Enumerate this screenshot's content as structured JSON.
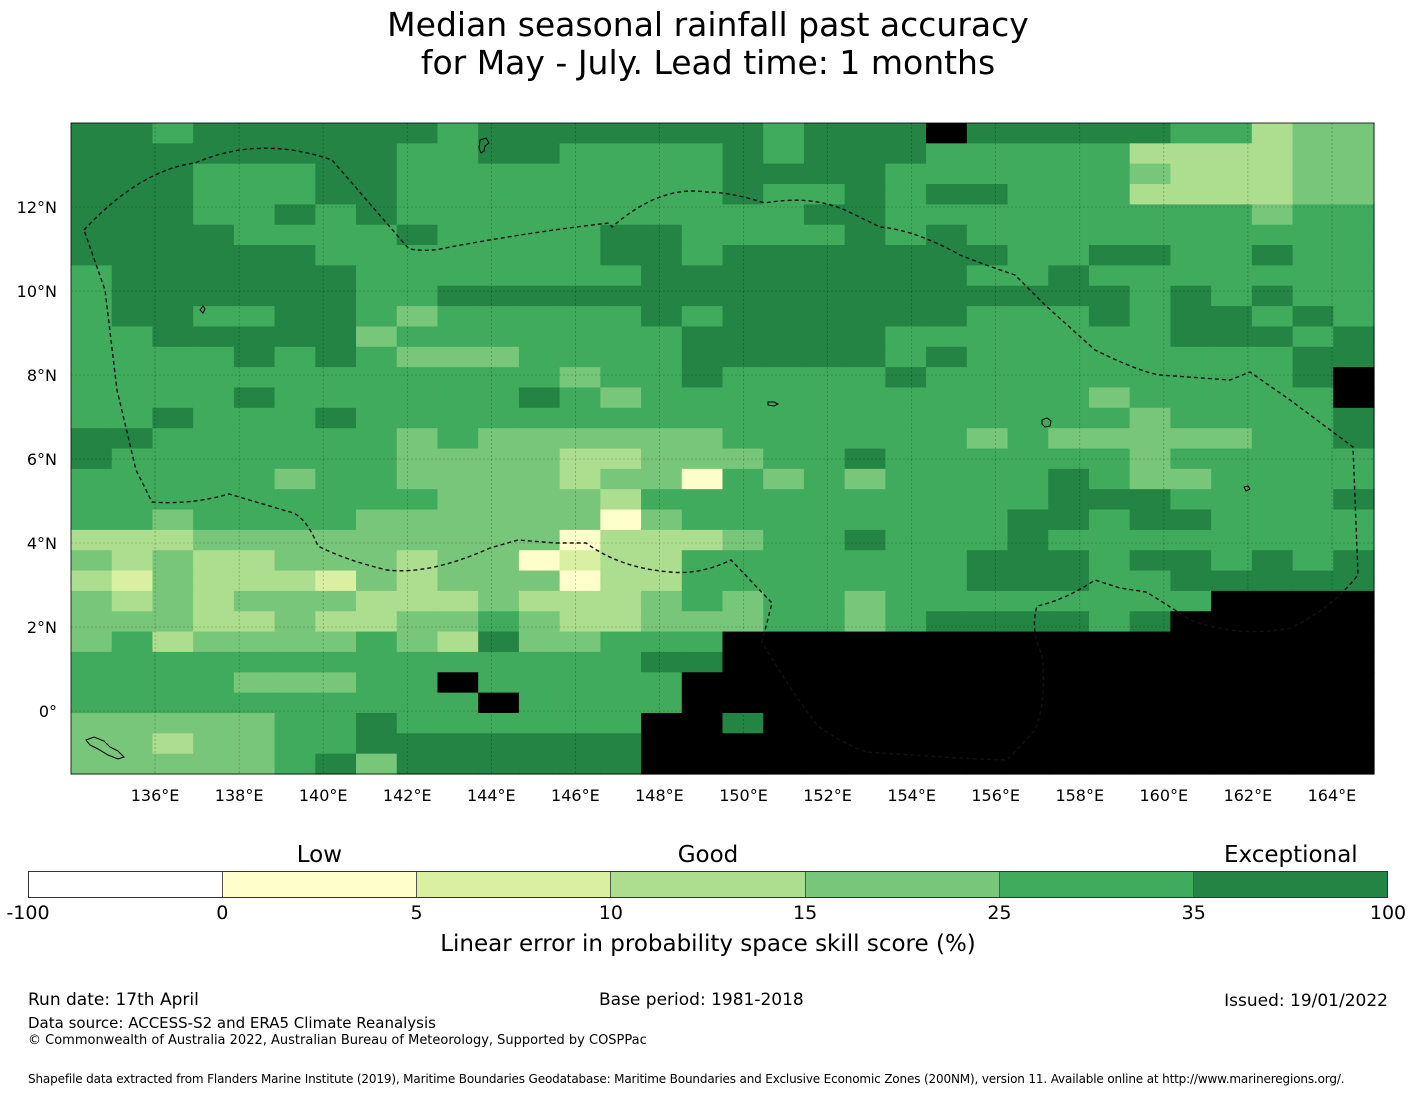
{
  "title": {
    "line1": "Median seasonal rainfall past accuracy",
    "line2": "for May - July. Lead time: 1 months"
  },
  "map": {
    "lon_labels": [
      "136°E",
      "138°E",
      "140°E",
      "142°E",
      "144°E",
      "146°E",
      "148°E",
      "150°E",
      "152°E",
      "154°E",
      "156°E",
      "158°E",
      "160°E",
      "162°E",
      "164°E"
    ],
    "lat_labels": [
      "12°N",
      "10°N",
      "8°N",
      "6°N",
      "4°N",
      "2°N",
      "0°"
    ],
    "extent": {
      "lon": [
        134.0,
        165.0
      ],
      "lat": [
        -1.5,
        14.0
      ]
    },
    "grid_resolution_deg": [
      0.833,
      0.556
    ],
    "gridlines": true,
    "boundary_style": "dashed",
    "legend_levels": [
      -100,
      0,
      5,
      10,
      15,
      25,
      35,
      100
    ],
    "skill_grid": [
      "66566666656666666566676666655344",
      "66666666556655556566655555333344",
      "66655566555555556666555555433344",
      "66655566555555556556566555333344",
      "66655656555555555566555555555455",
      "66665555655556655556565555555555",
      "66666655555556656666666556655655",
      "56666665555555666666665565555555",
      "56666665566666666666666666565655",
      "56655665455555656666665556566565",
      "55666664555555566666555555566656",
      "55556565444555566666565555555566",
      "55555555555545565555655555555567",
      "55556555555654555555555554555557",
      "55655565555555555555555555455556",
      "66555555454444445555554544444556",
      "65555555444433444556555555455555",
      "55555455444434415454555565445555",
      "55555555544443555555555566655556",
      "55455554444441455555555665665555",
      "33344444444413334556555655555555",
      "43433444344123355555556665665656",
      "32433324344413355555556665566666",
      "43434443334333454554555555557777",
      "44433433445433444554566665677777",
      "45344445436445557777777777777777",
      "55555555555555667777777777777777",
      "55554445575555577777777777777777",
      "55555555557555577777777777777777",
      "44444556555555776777777777777777",
      "44344556666666777777777777777777",
      "44444564666666777777777777777777"
    ]
  },
  "colorbar": {
    "ticks": [
      "-100",
      "0",
      "5",
      "10",
      "15",
      "25",
      "35",
      "100"
    ],
    "words": [
      "Low",
      "Good",
      "Exceptional"
    ],
    "colors": [
      "#ffffff",
      "#ffffcc",
      "#d9f0a3",
      "#addd8e",
      "#78c679",
      "#41ab5d",
      "#238443"
    ],
    "label": "Linear error in probability space skill score (%)"
  },
  "footer": {
    "run_date": "Run date: 17th April",
    "base_period": "Base period: 1981-2018",
    "issued": "Issued: 19/01/2022",
    "data_source": "Data source: ACCESS-S2 and ERA5 Climate Reanalysis",
    "copyright": "© Commonwealth of Australia 2022, Australian Bureau of Meteorology, Supported by COSPPac",
    "shapefile": "Shapefile data extracted from Flanders Marine Institute (2019), Maritime Boundaries Geodatabase: Maritime Boundaries and Exclusive Economic Zones (200NM), version 11. Available online at http://www.marineregions.org/."
  }
}
